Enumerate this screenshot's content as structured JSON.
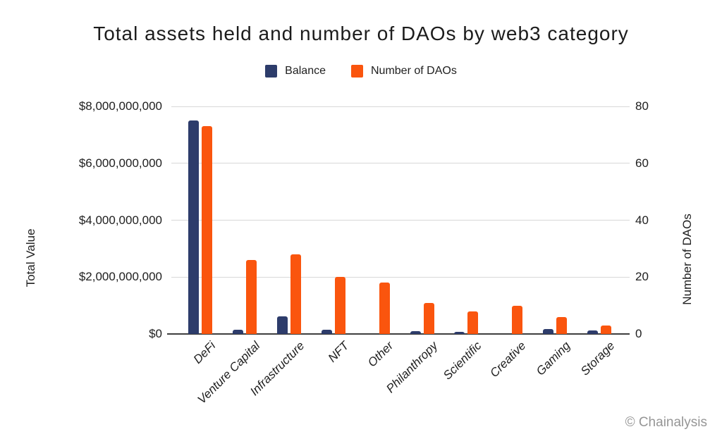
{
  "watermark": "© Chainalysis",
  "colors": {
    "balance_navy": "#2d3c6b",
    "daos_orange": "#fa550e",
    "gridline": "#d8d8d8",
    "axis_line": "#3f3f3f",
    "text": "#202020",
    "watermark_gray": "#969696",
    "background": "#ffffff"
  },
  "chart_data": {
    "type": "bar",
    "title": "Total assets held and number of DAOs by web3 category",
    "categories": [
      "DeFi",
      "Venture Capital",
      "Infrastructure",
      "NFT",
      "Other",
      "Philanthropy",
      "Scientific",
      "Creative",
      "Gaming",
      "Storage"
    ],
    "series": [
      {
        "name": "Balance",
        "axis": "left",
        "color": "#2d3c6b",
        "values": [
          7500000000,
          160000000,
          620000000,
          160000000,
          0,
          90000000,
          70000000,
          0,
          170000000,
          120000000
        ]
      },
      {
        "name": "Number of DAOs",
        "axis": "right",
        "color": "#fa550e",
        "values": [
          73,
          26,
          28,
          20,
          18,
          11,
          8,
          10,
          6,
          3
        ]
      }
    ],
    "left_axis": {
      "label": "Total Value",
      "min": 0,
      "max": 8000000000,
      "tick_step": 2000000000,
      "tick_labels": [
        "$0",
        "$2,000,000,000",
        "$4,000,000,000",
        "$6,000,000,000",
        "$8,000,000,000"
      ]
    },
    "right_axis": {
      "label": "Number of DAOs",
      "min": 0,
      "max": 80,
      "tick_step": 20,
      "tick_labels": [
        "0",
        "20",
        "40",
        "60",
        "80"
      ]
    },
    "grid": true,
    "legend_position": "top",
    "x_tick_rotation_deg": -45,
    "x_tick_style": "italic"
  }
}
